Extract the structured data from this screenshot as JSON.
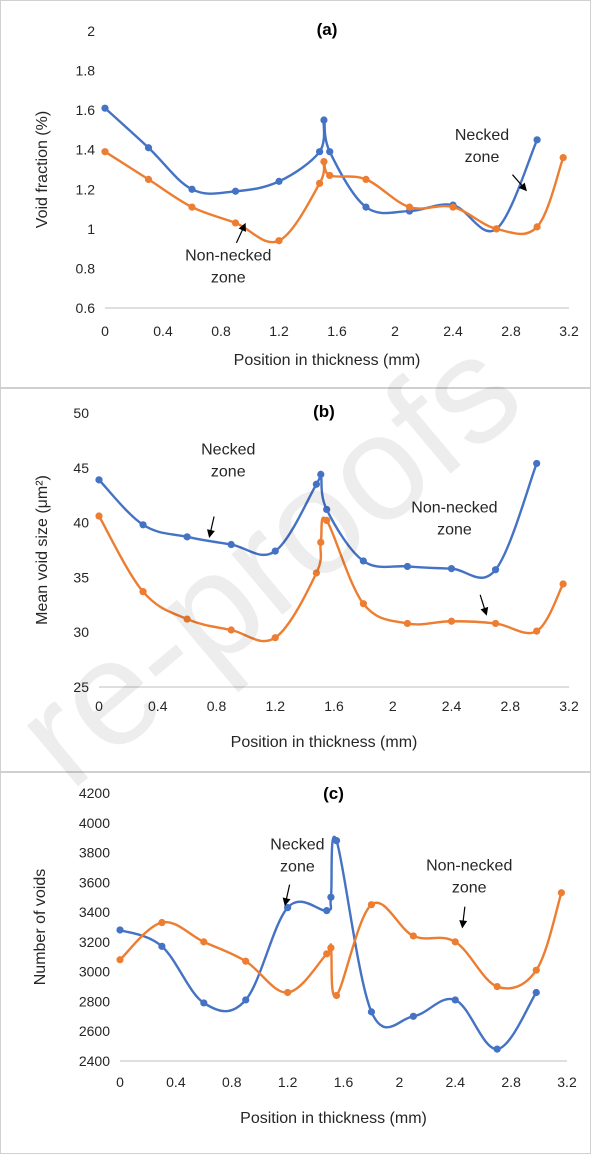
{
  "colors": {
    "necked": "#4472C4",
    "non_necked": "#ED7D31",
    "axis": "#bfbfbf",
    "text": "#262626"
  },
  "watermark": "re-proofs",
  "chart_data": [
    {
      "type": "line",
      "title": "(a)",
      "xlabel": "Position in thickness (mm)",
      "ylabel": "Void fraction (%)",
      "xlim": [
        0,
        3.2
      ],
      "ylim": [
        0.6,
        2
      ],
      "xticks": [
        "0",
        "0.4",
        "0.8",
        "1.2",
        "1.6",
        "2",
        "2.4",
        "2.8",
        "3.2"
      ],
      "yticks": [
        "0.6",
        "0.8",
        "1",
        "1.2",
        "1.4",
        "1.6",
        "1.8",
        "2"
      ],
      "series": [
        {
          "key": "necked",
          "x": [
            0,
            0.3,
            0.6,
            0.9,
            1.2,
            1.48,
            1.51,
            1.55,
            1.8,
            2.1,
            2.4,
            2.7,
            2.98
          ],
          "y": [
            1.61,
            1.41,
            1.2,
            1.19,
            1.24,
            1.39,
            1.55,
            1.39,
            1.11,
            1.09,
            1.12,
            1.0,
            1.45
          ]
        },
        {
          "key": "non_necked",
          "x": [
            0,
            0.3,
            0.6,
            0.9,
            1.2,
            1.48,
            1.51,
            1.55,
            1.8,
            2.1,
            2.4,
            2.7,
            2.98,
            3.16
          ],
          "y": [
            1.39,
            1.25,
            1.11,
            1.03,
            0.94,
            1.23,
            1.34,
            1.27,
            1.25,
            1.11,
            1.11,
            1.0,
            1.01,
            1.36
          ]
        }
      ],
      "annotations": [
        {
          "lines": [
            "Necked",
            "zone"
          ],
          "x": 2.6,
          "y": 1.45,
          "arrow_to": [
            2.91,
            1.19
          ]
        },
        {
          "lines": [
            "Non-necked",
            "zone"
          ],
          "x": 0.85,
          "y": 0.84,
          "arrow_to": [
            0.97,
            1.03
          ]
        }
      ]
    },
    {
      "type": "line",
      "title": "(b)",
      "xlabel": "Position in thickness (mm)",
      "ylabel": "Mean void size (μm²)",
      "xlim": [
        0,
        3.2
      ],
      "ylim": [
        25,
        50
      ],
      "xticks": [
        "0",
        "0.4",
        "0.8",
        "1.2",
        "1.6",
        "2",
        "2.4",
        "2.8",
        "3.2"
      ],
      "yticks": [
        "25",
        "30",
        "35",
        "40",
        "45",
        "50"
      ],
      "series": [
        {
          "key": "necked",
          "x": [
            0,
            0.3,
            0.6,
            0.9,
            1.2,
            1.48,
            1.51,
            1.55,
            1.8,
            2.1,
            2.4,
            2.7,
            2.98
          ],
          "y": [
            43.9,
            39.8,
            38.7,
            38.0,
            37.4,
            43.5,
            44.4,
            41.2,
            36.5,
            36.0,
            35.8,
            35.7,
            45.4
          ]
        },
        {
          "key": "non_necked",
          "x": [
            0,
            0.3,
            0.6,
            0.9,
            1.2,
            1.48,
            1.51,
            1.55,
            1.8,
            2.1,
            2.4,
            2.7,
            2.98,
            3.16
          ],
          "y": [
            40.6,
            33.7,
            31.2,
            30.2,
            29.5,
            35.4,
            38.2,
            40.2,
            32.6,
            30.8,
            31.0,
            30.8,
            30.1,
            34.4
          ]
        }
      ],
      "annotations": [
        {
          "lines": [
            "Necked",
            "zone"
          ],
          "x": 0.88,
          "y": 46.2,
          "arrow_to": [
            0.75,
            38.6
          ]
        },
        {
          "lines": [
            "Non-necked",
            "zone"
          ],
          "x": 2.42,
          "y": 40.9,
          "arrow_to": [
            2.64,
            31.5
          ]
        }
      ]
    },
    {
      "type": "line",
      "title": "(c)",
      "xlabel": "Position in thickness (mm)",
      "ylabel": "Number of voids",
      "xlim": [
        0,
        3.2
      ],
      "ylim": [
        2400,
        4200
      ],
      "xticks": [
        "0",
        "0.4",
        "0.8",
        "1.2",
        "1.6",
        "2",
        "2.4",
        "2.8",
        "3.2"
      ],
      "yticks": [
        "2400",
        "2600",
        "2800",
        "3000",
        "3200",
        "3400",
        "3600",
        "3800",
        "4000",
        "4200"
      ],
      "series": [
        {
          "key": "necked",
          "x": [
            0,
            0.3,
            0.6,
            0.9,
            1.2,
            1.48,
            1.51,
            1.55,
            1.8,
            2.1,
            2.4,
            2.7,
            2.98
          ],
          "y": [
            3280,
            3170,
            2790,
            2810,
            3430,
            3410,
            3500,
            3880,
            2730,
            2700,
            2810,
            2480,
            2860
          ]
        },
        {
          "key": "non_necked",
          "x": [
            0,
            0.3,
            0.6,
            0.9,
            1.2,
            1.48,
            1.51,
            1.55,
            1.8,
            2.1,
            2.4,
            2.7,
            2.98,
            3.16
          ],
          "y": [
            3080,
            3330,
            3200,
            3070,
            2860,
            3120,
            3160,
            2840,
            3450,
            3240,
            3200,
            2900,
            3010,
            3530
          ]
        }
      ],
      "annotations": [
        {
          "lines": [
            "Necked",
            "zone"
          ],
          "x": 1.27,
          "y": 3820,
          "arrow_to": [
            1.18,
            3440
          ]
        },
        {
          "lines": [
            "Non-necked",
            "zone"
          ],
          "x": 2.5,
          "y": 3680,
          "arrow_to": [
            2.45,
            3290
          ]
        }
      ]
    }
  ]
}
